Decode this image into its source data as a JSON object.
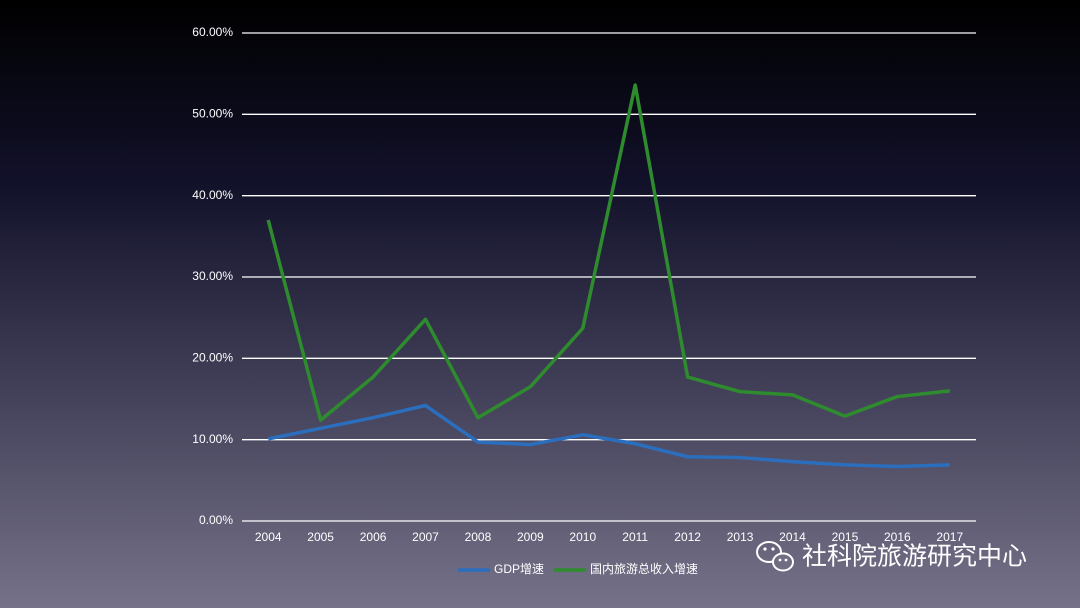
{
  "chart_data": {
    "type": "line",
    "categories": [
      "2004",
      "2005",
      "2006",
      "2007",
      "2008",
      "2009",
      "2010",
      "2011",
      "2012",
      "2013",
      "2014",
      "2015",
      "2016",
      "2017"
    ],
    "series": [
      {
        "name": "GDP增速",
        "color": "#2a6ebd",
        "values": [
          10.1,
          11.4,
          12.7,
          14.2,
          9.7,
          9.4,
          10.6,
          9.5,
          7.9,
          7.8,
          7.3,
          6.9,
          6.7,
          6.9
        ]
      },
      {
        "name": "国内旅游总收入增速",
        "color": "#2e8b2e",
        "values": [
          37.0,
          12.4,
          17.7,
          24.8,
          12.7,
          16.5,
          23.7,
          53.6,
          17.7,
          15.9,
          15.5,
          12.9,
          15.3,
          16.0
        ]
      }
    ],
    "ylim": [
      0,
      60
    ],
    "yticks": [
      {
        "value": 0,
        "label": "0.00%"
      },
      {
        "value": 10,
        "label": "10.00%"
      },
      {
        "value": 20,
        "label": "20.00%"
      },
      {
        "value": 30,
        "label": "30.00%"
      },
      {
        "value": 40,
        "label": "40.00%"
      },
      {
        "value": 50,
        "label": "50.00%"
      },
      {
        "value": 60,
        "label": "60.00%"
      }
    ],
    "grid": true,
    "legend": "bottom"
  },
  "watermark": "社科院旅游研究中心"
}
